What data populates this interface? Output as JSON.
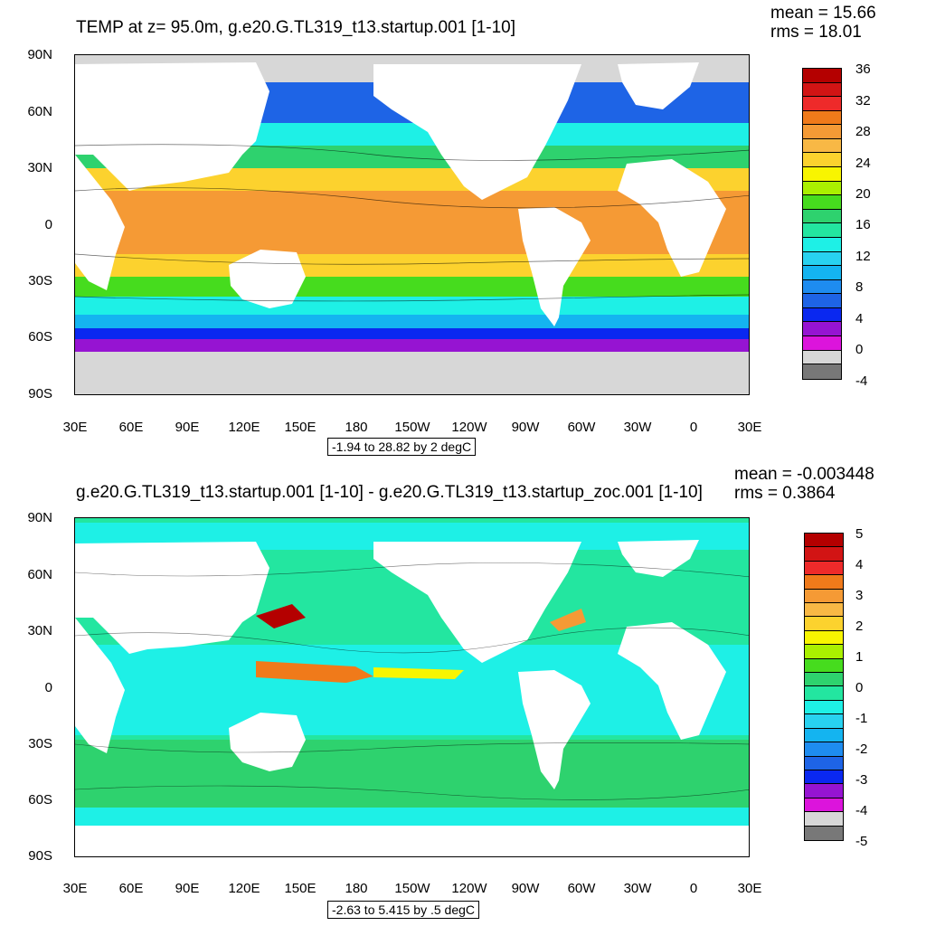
{
  "panel1": {
    "title": "TEMP at z=  95.0m, g.e20.G.TL319_t13.startup.001 [1-10]",
    "mean": "mean = 15.66",
    "rms": "rms = 18.01",
    "range": "-1.94 to 28.82 by 2 degC",
    "lat_labels": [
      "90N",
      "60N",
      "30N",
      "0",
      "30S",
      "60S",
      "90S"
    ],
    "lon_labels": [
      "30E",
      "60E",
      "90E",
      "120E",
      "150E",
      "180",
      "150W",
      "120W",
      "90W",
      "60W",
      "30W",
      "0",
      "30E"
    ],
    "colorbar": {
      "labels": [
        "36",
        "32",
        "28",
        "24",
        "20",
        "16",
        "12",
        "8",
        "4",
        "0",
        "-4"
      ],
      "colors": [
        "#b40000",
        "#d21414",
        "#ee2a2a",
        "#f07a1a",
        "#f59a35",
        "#f8b845",
        "#fcd22e",
        "#f8f500",
        "#aaf000",
        "#46dc1e",
        "#2ed26e",
        "#23e6a0",
        "#1ef0e6",
        "#28d2f0",
        "#14b4f0",
        "#1e8cf0",
        "#1e64e6",
        "#0a28f0",
        "#9614d2",
        "#dc14dc",
        "#d7d7d7",
        "#787878"
      ]
    }
  },
  "panel2": {
    "title": "g.e20.G.TL319_t13.startup.001 [1-10] - g.e20.G.TL319_t13.startup_zoc.001 [1-10]",
    "mean": "mean = -0.003448",
    "rms": "rms = 0.3864",
    "range": "-2.63 to 5.415 by .5 degC",
    "lat_labels": [
      "90N",
      "60N",
      "30N",
      "0",
      "30S",
      "60S",
      "90S"
    ],
    "lon_labels": [
      "30E",
      "60E",
      "90E",
      "120E",
      "150E",
      "180",
      "150W",
      "120W",
      "90W",
      "60W",
      "30W",
      "0",
      "30E"
    ],
    "colorbar": {
      "labels": [
        "5",
        "4",
        "3",
        "2",
        "1",
        "0",
        "-1",
        "-2",
        "-3",
        "-4",
        "-5"
      ],
      "colors": [
        "#b40000",
        "#d21414",
        "#ee2a2a",
        "#f07a1a",
        "#f59a35",
        "#f8b845",
        "#fcd22e",
        "#f8f500",
        "#aaf000",
        "#46dc1e",
        "#2ed26e",
        "#23e6a0",
        "#1ef0e6",
        "#28d2f0",
        "#14b4f0",
        "#1e8cf0",
        "#1e64e6",
        "#0a28f0",
        "#9614d2",
        "#dc14dc",
        "#d7d7d7",
        "#787878"
      ]
    }
  }
}
